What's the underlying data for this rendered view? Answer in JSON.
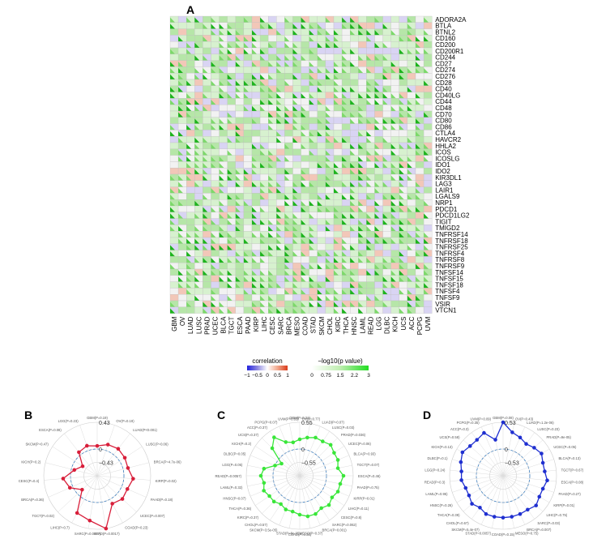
{
  "panels": {
    "A": "A",
    "B": "B",
    "C": "C",
    "D": "D"
  },
  "heatmap": {
    "legend": {
      "correlation_label": "correlation",
      "correlation_ticks": [
        "−1",
        "−0.5",
        "0",
        "0.5",
        "1"
      ],
      "pvalue_label": "−log10(p value)",
      "pvalue_ticks": [
        "0",
        "0.75",
        "1.5",
        "2.2",
        "3"
      ]
    }
  },
  "colors": {
    "positive": "#e07b5f",
    "negative": "#8c86e0",
    "significant": "#2ecc40",
    "radar_B": "#d81e3a",
    "radar_C": "#39e639",
    "radar_D": "#1f2fd0"
  },
  "chart_data": [
    {
      "type": "heatmap",
      "panel": "A",
      "x_categories": [
        "GBM",
        "OV",
        "LUAD",
        "LUSC",
        "PRAD",
        "UCEC",
        "BLCA",
        "TGCT",
        "ESCA",
        "PAAD",
        "KIRP",
        "LIHC",
        "CESC",
        "SARC",
        "BRCA",
        "MESO",
        "COAD",
        "STAD",
        "SKCM",
        "CHOL",
        "KIRC",
        "THCA",
        "HNSC",
        "LAML",
        "READ",
        "LGG",
        "DLBC",
        "KICH",
        "UCS",
        "ACC",
        "PCPG",
        "UVM"
      ],
      "y_categories": [
        "ADORA2A",
        "BTLA",
        "BTNL2",
        "CD160",
        "CD200",
        "CD200R1",
        "CD244",
        "CD27",
        "CD274",
        "CD276",
        "CD28",
        "CD40",
        "CD40LG",
        "CD44",
        "CD48",
        "CD70",
        "CD80",
        "CD86",
        "CTLA4",
        "HAVCR2",
        "HHLA2",
        "ICOS",
        "ICOSLG",
        "IDO1",
        "IDO2",
        "KIR3DL1",
        "LAG3",
        "LAIR1",
        "LGALS9",
        "NRP1",
        "PDCD1",
        "PDCD1LG2",
        "TIGIT",
        "TMIGD2",
        "TNFRSF14",
        "TNFRSF18",
        "TNFRSF25",
        "TNFRSF4",
        "TNFRSF8",
        "TNFRSF9",
        "TNFSF14",
        "TNFSF15",
        "TNFSF18",
        "TNFSF4",
        "TNFSF9",
        "VSIR",
        "VTCN1"
      ],
      "legend": {
        "correlation": {
          "range": [
            -1,
            1
          ]
        },
        "neg_log10_p": {
          "range": [
            0,
            3
          ]
        }
      }
    },
    {
      "type": "radar",
      "panel": "B",
      "rlim": [
        -0.43,
        0.43
      ],
      "ring_labels": [
        "0.43",
        "0",
        "−0.43"
      ],
      "axes": [
        "GBM(P=0.19)",
        "OV(P=0.19)",
        "LUAD(P<0.001)",
        "LUSC(P=0.06)",
        "BRCA(P=4.7e-06)",
        "KIRP(P=0.02)",
        "PAAD(P=0.18)",
        "UCEC(P=0.007)",
        "COAD(P=0.23)",
        "STAD(P=0.0017)",
        "SARC(P=0.0057)",
        "LIHC(P=0.7)",
        "TGCT(P=0.02)",
        "BRCA(P=0.36)",
        "CESC(P=0.4)",
        "KICH(P=0.2)",
        "SKCM(P=0.47)",
        "ESCA(P=0.08)",
        "LGG(P=0.23)"
      ],
      "values": [
        0.05,
        0.1,
        0.12,
        0.1,
        0.08,
        0.15,
        0.1,
        0.12,
        0.08,
        0.43,
        0.3,
        0.25,
        -0.1,
        0.05,
        0.12,
        -0.05,
        -0.15,
        0.05,
        0.08
      ]
    },
    {
      "type": "radar",
      "panel": "C",
      "rlim": [
        -0.55,
        0.55
      ],
      "ring_labels": [
        "0.55",
        "0",
        "−0.55"
      ],
      "axes": [
        "GBM(P=0.21)",
        "OV(P=0.77)",
        "LUAD(P=0.07)",
        "LUSC(P=0.03)",
        "PRAD(P=0.036)",
        "UCEC(P=0.06)",
        "BLCA(P=0.93)",
        "TGCT(P=0.07)",
        "ESCA(P=0.46)",
        "PAAD(P=0.75)",
        "KIRP(P=0.01)",
        "LIHC(P=0.11)",
        "CESC(P=0.8)",
        "SARC(P=0.062)",
        "BRCA(P=0.001)",
        "MESO(P=0.37)",
        "COAD(P=0.31)",
        "STAD(P=8e-05)",
        "SKCM(P=3.5e-05)",
        "CHOL(P=0.57)",
        "KIRC(P=0.37)",
        "THCA(P=0.36)",
        "HNSC(P=0.07)",
        "LAML(P=0.32)",
        "READ(P=0.0057)",
        "LGG(P=0.05)",
        "DLBC(P=0.05)",
        "KICH(P=0.2)",
        "UCS(P=0.37)",
        "ACC(P=0.37)",
        "PCPG(P=0.07)",
        "UVM(P=0.83)"
      ],
      "values": [
        0.2,
        0.25,
        0.3,
        0.3,
        0.35,
        0.3,
        0.3,
        0.25,
        0.35,
        0.3,
        0.3,
        0.25,
        0.3,
        0.25,
        0.3,
        0.3,
        0.25,
        0.2,
        0.2,
        0.15,
        0.2,
        0.2,
        0.25,
        0.2,
        0.25,
        0.2,
        0.0,
        -0.1,
        0.25,
        0.4,
        0.2,
        0.15
      ]
    },
    {
      "type": "radar",
      "panel": "D",
      "rlim": [
        -0.53,
        0.53
      ],
      "ring_labels": [
        "0.53",
        "0",
        "−0.53"
      ],
      "axes": [
        "GBM(P=0.08)",
        "OV(P=0.43)",
        "LUAD(P=1.2e-06)",
        "LUSC(P=0.23)",
        "PRAD(P=9e-05)",
        "UCEC(P=0.05)",
        "BLCA(P=0.13)",
        "TGCT(P=0.67)",
        "ESCA(P=0.08)",
        "PAAD(P=0.27)",
        "KIRP(P=0.01)",
        "LIHC(P=0.75)",
        "SARC(P=0.03)",
        "BRCA(P=0.007)",
        "MESO(P=0.75)",
        "COAD(P=0.15)",
        "STAD(P=0.0057)",
        "SKCM(P=5.4e-07)",
        "CHOL(P=0.67)",
        "THCA(P=0.39)",
        "HNSC(P=0.26)",
        "LAML(P=0.95)",
        "READ(P=0.3)",
        "LGG(P=0.24)",
        "DLBC(P=0.1)",
        "KICH(P=0.13)",
        "UCS(P=0.58)",
        "ACC(P=0.3)",
        "PCPG(P=0.35)",
        "UVM(P=0.09)"
      ],
      "values": [
        0.53,
        0.35,
        0.3,
        0.25,
        0.3,
        0.35,
        0.3,
        0.3,
        0.35,
        0.3,
        0.3,
        0.35,
        0.3,
        0.3,
        0.3,
        0.3,
        0.3,
        0.3,
        0.25,
        0.3,
        0.25,
        0.25,
        0.3,
        0.3,
        0.35,
        0.4,
        0.35,
        0.35,
        0.4,
        0.2
      ]
    }
  ]
}
